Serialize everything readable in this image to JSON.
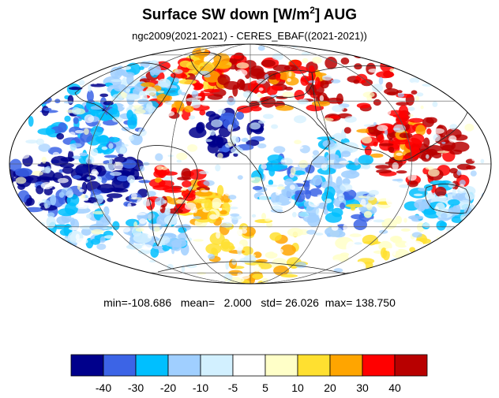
{
  "title": {
    "main": "Surface SW down [W/m",
    "sup": "2",
    "tail": "]  AUG"
  },
  "subtitle": "ngc2009(2021-2021) - CERES_EBAF((2021-2021))",
  "stats": {
    "min_label": "min=",
    "min": "-108.686",
    "mean_label": "mean=",
    "mean": "2.000",
    "std_label": "std=",
    "std": "26.026",
    "max_label": "max=",
    "max": "138.750"
  },
  "colorbar": {
    "colors": [
      "#00008b",
      "#3c64e6",
      "#00bfff",
      "#a0cfff",
      "#d2f0ff",
      "#ffffff",
      "#ffffc8",
      "#ffe030",
      "#ffa500",
      "#ff0000",
      "#b80000"
    ],
    "tick_labels": [
      "-40",
      "-30",
      "-20",
      "-10",
      "-5",
      "5",
      "10",
      "20",
      "30",
      "40"
    ]
  },
  "map": {
    "projection": "mollweide",
    "field": "difference"
  }
}
